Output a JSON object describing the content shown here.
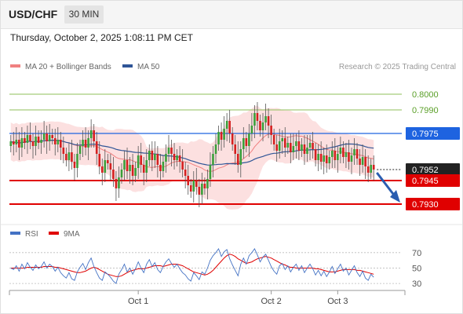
{
  "header": {
    "symbol": "USD/CHF",
    "timeframe": "30 MIN",
    "datetime": "Thursday, October 2, 2025 1:08:11 PM CET"
  },
  "legend": {
    "ma20": "MA 20 + Bollinger Bands",
    "ma50": "MA 50",
    "credit": "Research © 2025 Trading Central",
    "ma20_color": "#f08080",
    "ma50_color": "#2f5597"
  },
  "rsi_legend": {
    "rsi": "RSI",
    "ma9": "9MA",
    "rsi_color": "#4472c4",
    "ma9_color": "#e00000"
  },
  "chart_data": [
    {
      "type": "candlestick",
      "title": "USD/CHF 30 MIN",
      "price_range": [
        0.792,
        0.801
      ],
      "levels": [
        {
          "label": "0.8000",
          "value": 0.8,
          "color": "#8fbf5a",
          "style": "target"
        },
        {
          "label": "0.7990",
          "value": 0.799,
          "color": "#8fbf5a",
          "style": "target"
        },
        {
          "label": "0.7975",
          "value": 0.7975,
          "color": "#1e63e0",
          "style": "pivot"
        },
        {
          "label": "0.7952",
          "value": 0.7952,
          "color": "#222222",
          "style": "last"
        },
        {
          "label": "0.7945",
          "value": 0.7945,
          "color": "#e00000",
          "style": "support"
        },
        {
          "label": "0.7930",
          "value": 0.793,
          "color": "#e00000",
          "style": "support"
        }
      ],
      "x_ticks": [
        {
          "label": "Oct 1",
          "index": 46
        },
        {
          "label": "Oct 2",
          "index": 94
        },
        {
          "label": "Oct 3",
          "index": 118
        }
      ],
      "up_color": "#3a9f3a",
      "down_color": "#d42020",
      "closes": [
        0.797,
        0.7968,
        0.7971,
        0.7966,
        0.7972,
        0.7969,
        0.7974,
        0.797,
        0.7967,
        0.7973,
        0.7969,
        0.7971,
        0.7975,
        0.797,
        0.7974,
        0.7972,
        0.7968,
        0.7971,
        0.7966,
        0.7962,
        0.7958,
        0.7963,
        0.7957,
        0.7953,
        0.7962,
        0.7967,
        0.7971,
        0.7966,
        0.7972,
        0.7977,
        0.797,
        0.7962,
        0.7954,
        0.795,
        0.7958,
        0.7956,
        0.7952,
        0.7946,
        0.794,
        0.7947,
        0.7952,
        0.7958,
        0.7951,
        0.7955,
        0.7948,
        0.7953,
        0.7961,
        0.7955,
        0.795,
        0.7958,
        0.7964,
        0.7958,
        0.7962,
        0.7955,
        0.7951,
        0.7957,
        0.7962,
        0.7966,
        0.7962,
        0.7958,
        0.7961,
        0.7957,
        0.7952,
        0.7948,
        0.7942,
        0.7938,
        0.7945,
        0.7941,
        0.7936,
        0.7943,
        0.794,
        0.7946,
        0.7955,
        0.7962,
        0.7968,
        0.7976,
        0.7971,
        0.7978,
        0.7983,
        0.7975,
        0.7968,
        0.7962,
        0.7955,
        0.7965,
        0.7972,
        0.7967,
        0.7975,
        0.798,
        0.7988,
        0.7983,
        0.7977,
        0.7982,
        0.7986,
        0.798,
        0.7974,
        0.7968,
        0.7964,
        0.797,
        0.7972,
        0.7966,
        0.7969,
        0.7963,
        0.7967,
        0.797,
        0.7964,
        0.7968,
        0.7962,
        0.7966,
        0.7969,
        0.7965,
        0.7958,
        0.7962,
        0.7957,
        0.7961,
        0.7956,
        0.796,
        0.7964,
        0.7958,
        0.7962,
        0.7966,
        0.796,
        0.7963,
        0.7957,
        0.7961,
        0.7965,
        0.7959,
        0.7955,
        0.796,
        0.7954,
        0.795,
        0.7955,
        0.7952
      ]
    },
    {
      "type": "line",
      "title": "RSI",
      "y_ticks": [
        30,
        50,
        70
      ],
      "ylim": [
        25,
        80
      ],
      "series": [
        {
          "name": "RSI",
          "values": [
            50,
            48,
            53,
            46,
            55,
            49,
            57,
            51,
            47,
            54,
            49,
            52,
            58,
            50,
            55,
            52,
            46,
            51,
            44,
            40,
            37,
            44,
            36,
            34,
            45,
            51,
            56,
            48,
            57,
            63,
            52,
            44,
            37,
            34,
            45,
            42,
            38,
            33,
            30,
            42,
            48,
            55,
            45,
            50,
            42,
            49,
            58,
            50,
            44,
            55,
            61,
            52,
            57,
            48,
            44,
            52,
            58,
            62,
            56,
            51,
            55,
            49,
            44,
            41,
            36,
            33,
            44,
            40,
            35,
            45,
            42,
            50,
            60,
            66,
            70,
            75,
            65,
            71,
            74,
            62,
            54,
            47,
            40,
            55,
            63,
            55,
            66,
            70,
            75,
            67,
            58,
            64,
            68,
            60,
            52,
            46,
            42,
            53,
            56,
            48,
            53,
            45,
            51,
            55,
            47,
            53,
            44,
            50,
            55,
            49,
            41,
            47,
            40,
            46,
            39,
            45,
            52,
            43,
            49,
            55,
            46,
            50,
            41,
            47,
            53,
            44,
            39,
            46,
            37,
            34,
            42,
            38
          ]
        },
        {
          "name": "9MA",
          "values": [
            50,
            50,
            50,
            50,
            50,
            50,
            51,
            51,
            51,
            51,
            51,
            51,
            52,
            52,
            52,
            52,
            51,
            51,
            50,
            49,
            48,
            47,
            46,
            45,
            44,
            44,
            45,
            46,
            48,
            50,
            51,
            50,
            48,
            46,
            44,
            42,
            41,
            40,
            39,
            39,
            40,
            42,
            44,
            46,
            47,
            48,
            49,
            49,
            49,
            50,
            51,
            52,
            53,
            53,
            53,
            52,
            53,
            54,
            55,
            55,
            55,
            54,
            53,
            51,
            49,
            47,
            45,
            44,
            43,
            42,
            41,
            42,
            44,
            47,
            51,
            55,
            59,
            63,
            66,
            68,
            67,
            65,
            62,
            60,
            58,
            56,
            57,
            58,
            60,
            62,
            63,
            64,
            65,
            64,
            63,
            61,
            59,
            57,
            55,
            54,
            52,
            51,
            51,
            50,
            50,
            50,
            50,
            50,
            50,
            50,
            49,
            49,
            48,
            47,
            46,
            45,
            45,
            45,
            46,
            47,
            48,
            48,
            48,
            48,
            48,
            47,
            47,
            46,
            45,
            44,
            43,
            42
          ]
        }
      ]
    }
  ]
}
